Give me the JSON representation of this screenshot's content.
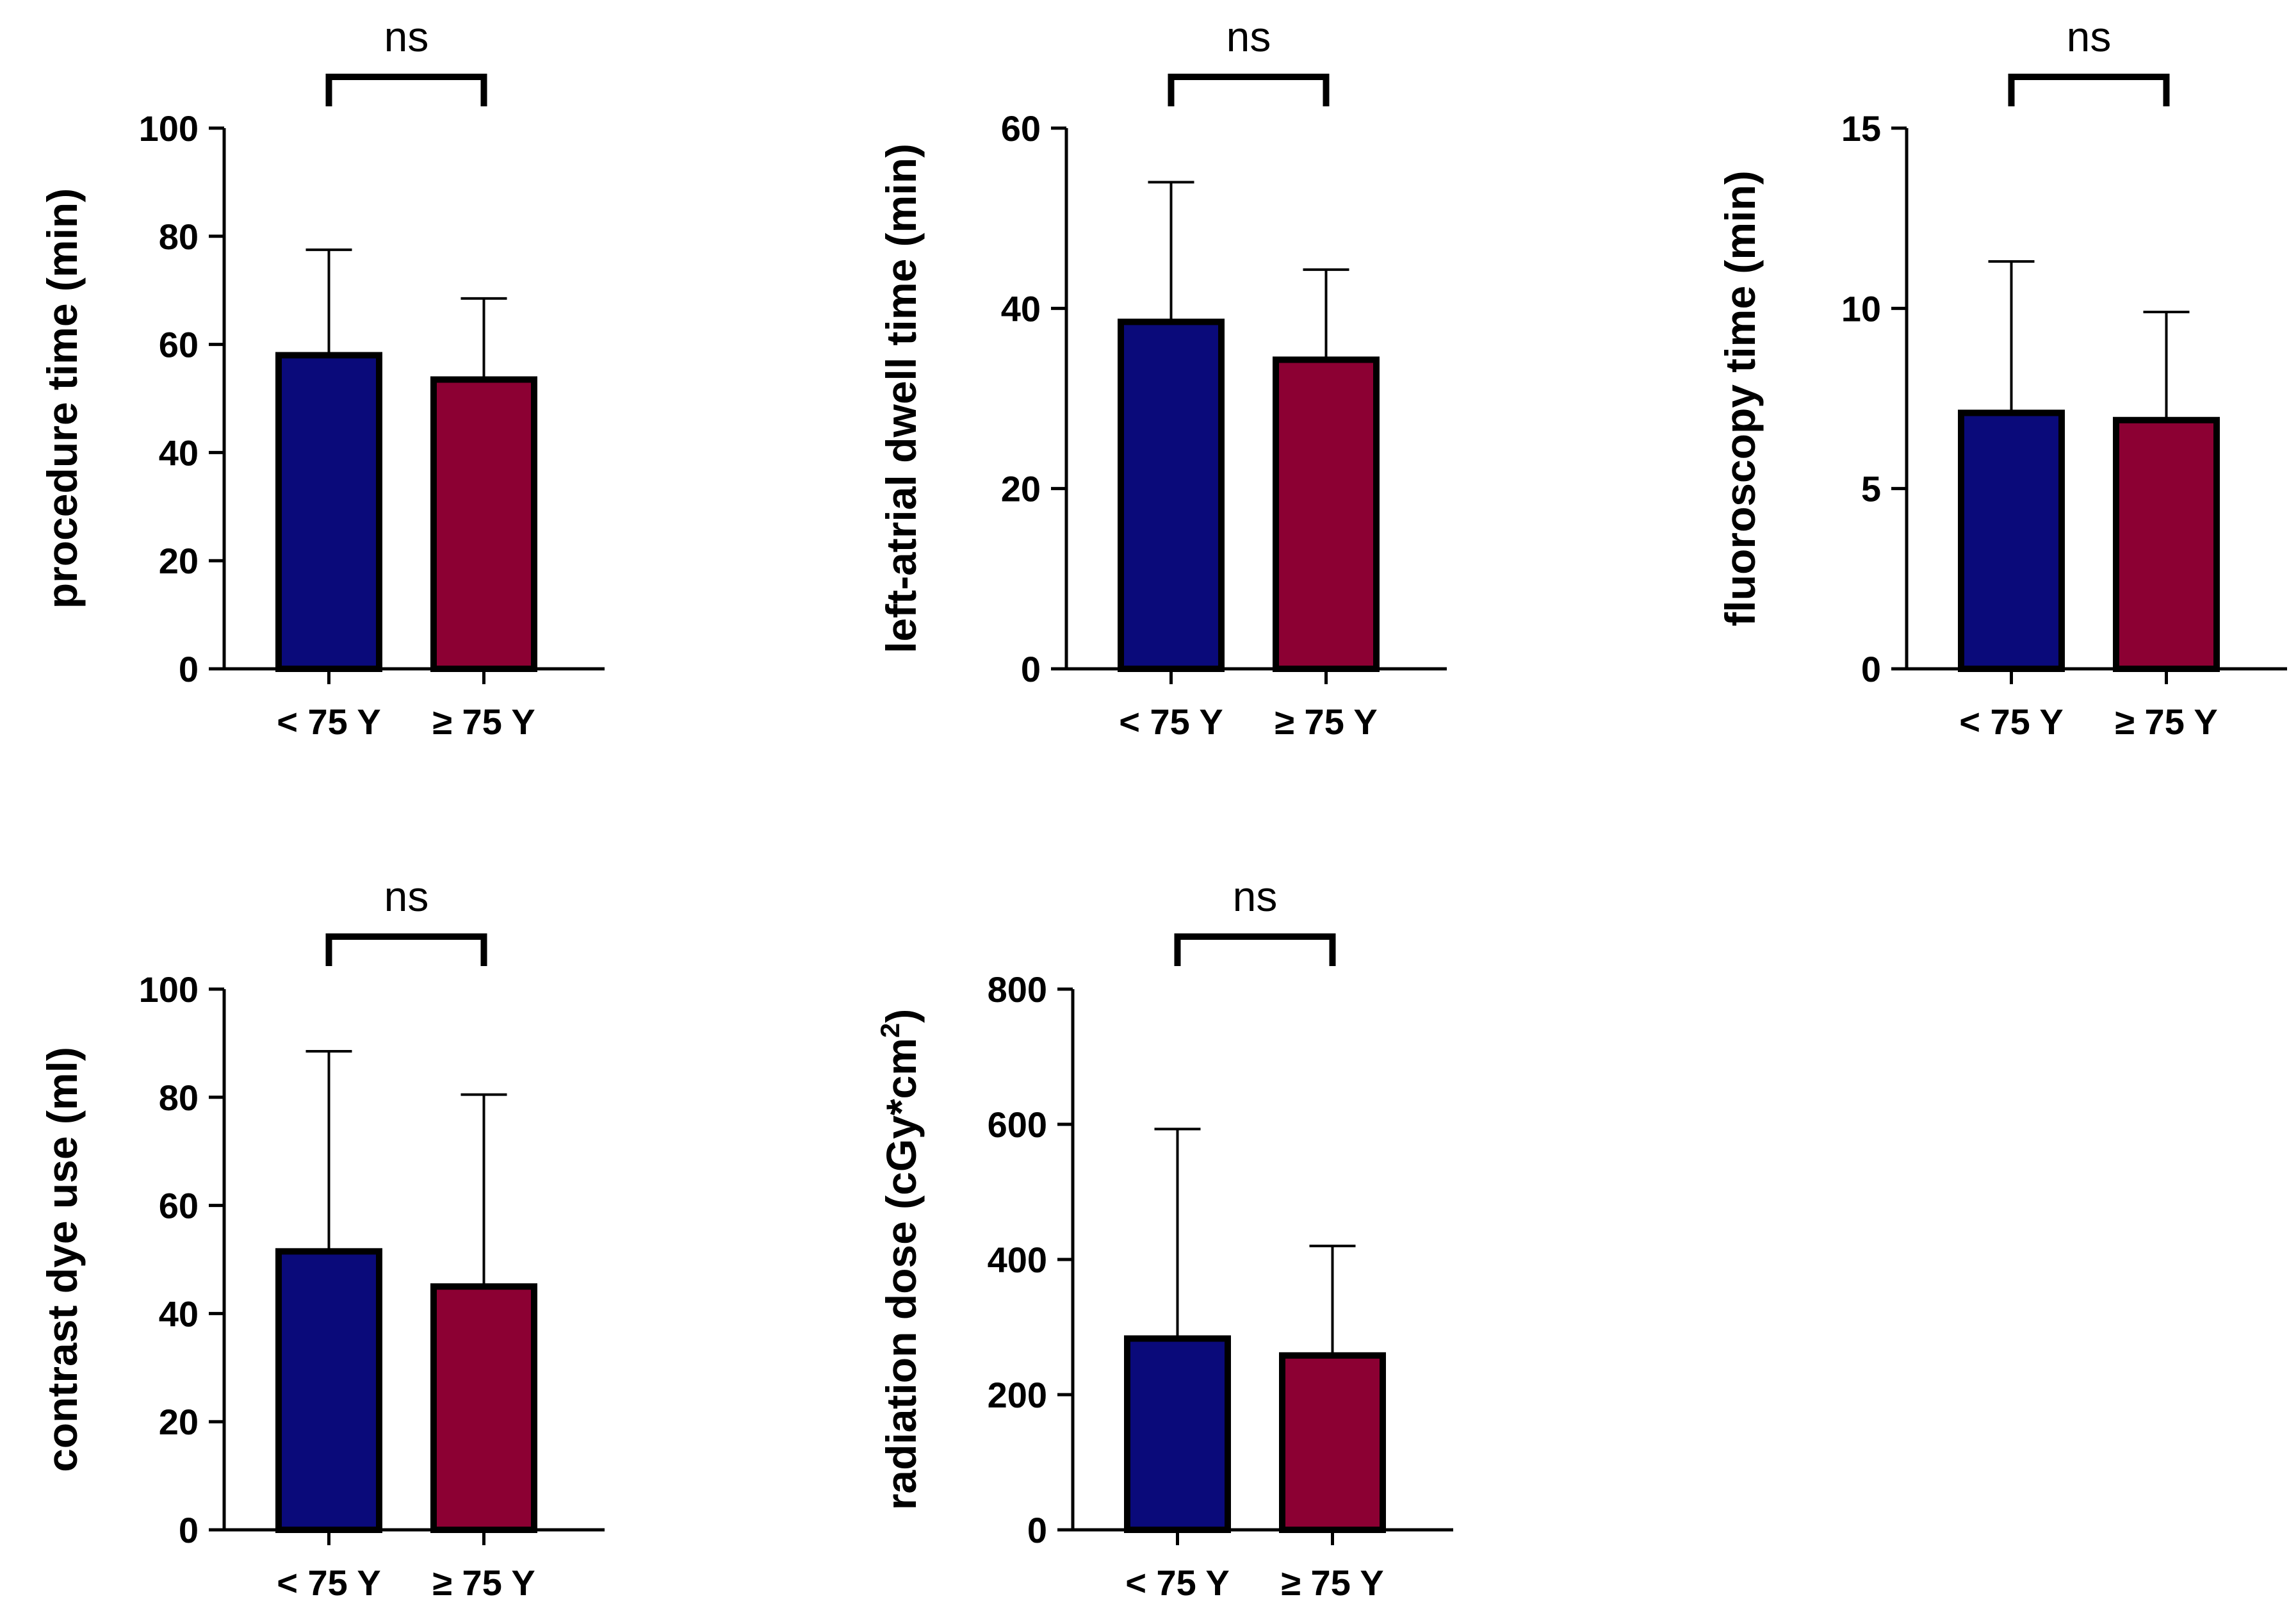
{
  "chart_data": [
    {
      "type": "bar",
      "ylabel": "procedure time (min)",
      "ylabel_sup": "",
      "ylabel_tail": "",
      "categories": [
        "< 75 Y",
        "≥ 75 Y"
      ],
      "values": [
        58,
        53.5
      ],
      "error_upper": [
        77.5,
        68.5
      ],
      "ylim": [
        0,
        100
      ],
      "yticks": [
        0,
        20,
        40,
        60,
        80,
        100
      ],
      "significance": "ns",
      "colors": [
        "#0a0a7a",
        "#8c0033"
      ]
    },
    {
      "type": "bar",
      "ylabel": "left-atrial dwell time (min)",
      "ylabel_sup": "",
      "ylabel_tail": "",
      "categories": [
        "< 75 Y",
        "≥ 75 Y"
      ],
      "values": [
        38.5,
        34.3
      ],
      "error_upper": [
        54,
        44.3
      ],
      "ylim": [
        0,
        60
      ],
      "yticks": [
        0,
        20,
        40,
        60
      ],
      "significance": "ns",
      "colors": [
        "#0a0a7a",
        "#8c0033"
      ]
    },
    {
      "type": "bar",
      "ylabel": "fluoroscopy time (min)",
      "ylabel_sup": "",
      "ylabel_tail": "",
      "categories": [
        "< 75 Y",
        "≥ 75 Y"
      ],
      "values": [
        7.1,
        6.9
      ],
      "error_upper": [
        11.3,
        9.9
      ],
      "ylim": [
        0,
        15
      ],
      "yticks": [
        0,
        5,
        10,
        15
      ],
      "significance": "ns",
      "colors": [
        "#0a0a7a",
        "#8c0033"
      ]
    },
    {
      "type": "bar",
      "ylabel": "contrast dye use (ml)",
      "ylabel_sup": "",
      "ylabel_tail": "",
      "categories": [
        "< 75 Y",
        "≥ 75 Y"
      ],
      "values": [
        51.5,
        45
      ],
      "error_upper": [
        88.5,
        80.5
      ],
      "ylim": [
        0,
        100
      ],
      "yticks": [
        0,
        20,
        40,
        60,
        80,
        100
      ],
      "significance": "ns",
      "colors": [
        "#0a0a7a",
        "#8c0033"
      ]
    },
    {
      "type": "bar",
      "ylabel": "radiation dose (cGy*cm",
      "ylabel_sup": "2",
      "ylabel_tail": ")",
      "categories": [
        "< 75 Y",
        "≥ 75 Y"
      ],
      "values": [
        283,
        258
      ],
      "error_upper": [
        593,
        420
      ],
      "ylim": [
        0,
        800
      ],
      "yticks": [
        0,
        200,
        400,
        600,
        800
      ],
      "significance": "ns",
      "colors": [
        "#0a0a7a",
        "#8c0033"
      ]
    }
  ]
}
